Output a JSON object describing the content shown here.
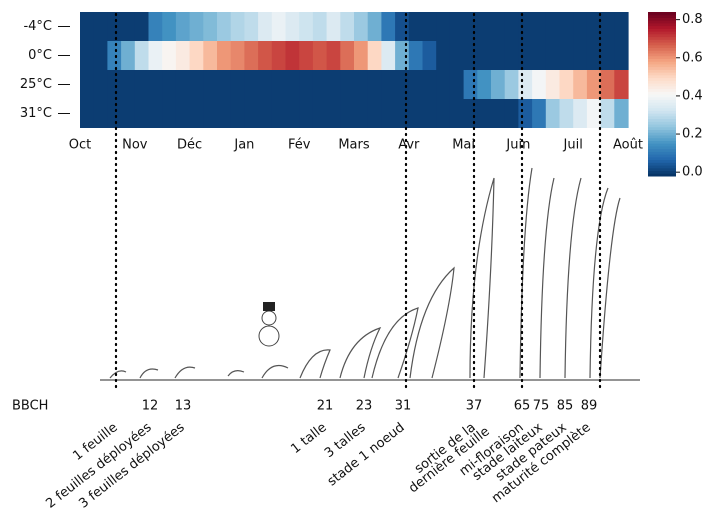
{
  "chart_data": {
    "type": "heatmap",
    "rows": [
      "-4°C",
      "0°C",
      "25°C",
      "31°C"
    ],
    "months": [
      "Oct",
      "Nov",
      "Déc",
      "Jan",
      "Fév",
      "Mars",
      "Avr",
      "Mai",
      "Juin",
      "Juil",
      "Août"
    ],
    "values": [
      [
        0,
        0,
        0,
        0,
        0,
        0.12,
        0.15,
        0.18,
        0.2,
        0.22,
        0.25,
        0.28,
        0.3,
        0.35,
        0.38,
        0.35,
        0.32,
        0.3,
        0.35,
        0.3,
        0.25,
        0.2,
        0.1,
        0.03,
        0,
        0,
        0,
        0,
        0,
        0,
        0,
        0,
        0,
        0,
        0,
        0,
        0,
        0,
        0,
        0
      ],
      [
        0,
        0,
        0.12,
        0.2,
        0.3,
        0.38,
        0.42,
        0.45,
        0.5,
        0.55,
        0.6,
        0.62,
        0.65,
        0.68,
        0.7,
        0.72,
        0.7,
        0.68,
        0.7,
        0.65,
        0.6,
        0.5,
        0.35,
        0.2,
        0.1,
        0.05,
        0,
        0,
        0,
        0,
        0,
        0,
        0,
        0,
        0,
        0,
        0,
        0,
        0,
        0
      ],
      [
        0,
        0,
        0,
        0,
        0,
        0,
        0,
        0,
        0,
        0,
        0,
        0,
        0,
        0,
        0,
        0,
        0,
        0,
        0,
        0,
        0,
        0,
        0,
        0,
        0,
        0,
        0,
        0,
        0.1,
        0.15,
        0.2,
        0.25,
        0.35,
        0.4,
        0.45,
        0.5,
        0.55,
        0.6,
        0.65,
        0.7
      ],
      [
        0,
        0,
        0,
        0,
        0,
        0,
        0,
        0,
        0,
        0,
        0,
        0,
        0,
        0,
        0,
        0,
        0,
        0,
        0,
        0,
        0,
        0,
        0,
        0,
        0,
        0,
        0,
        0,
        0,
        0,
        0,
        0,
        0.05,
        0.1,
        0.25,
        0.3,
        0.35,
        0.4,
        0.3,
        0.2
      ]
    ],
    "colorscale": [
      "#053061",
      "#2166ac",
      "#4393c3",
      "#92c5de",
      "#d1e5f0",
      "#f7f7f7",
      "#fddbc7",
      "#f4a582",
      "#d6604d",
      "#b2182b",
      "#67001f"
    ],
    "zlim": [
      -0.02,
      0.84
    ],
    "zticks": [
      {
        "value": 0,
        "label": "0.0"
      },
      0.2,
      0.4,
      0.6,
      0.8
    ],
    "stage_axis_label": "BBCH",
    "stages": [
      {
        "code": null,
        "label": "1 feuille"
      },
      {
        "code": 12,
        "label": "2 feuilles déployées"
      },
      {
        "code": 13,
        "label": "3 feuilles déployées"
      },
      {
        "code": 21,
        "label": "1 talle"
      },
      {
        "code": 23,
        "label": "3 talles"
      },
      {
        "code": 31,
        "label": "stade 1 noeud"
      },
      {
        "code": 37,
        "label": [
          "sortie de la",
          "dernière feuille"
        ]
      },
      {
        "code": 65,
        "label": "mi-floraison"
      },
      {
        "code": 75,
        "label": "stade laiteux"
      },
      {
        "code": 85,
        "label": "stade pateux"
      },
      {
        "code": 89,
        "label": "maturité complète"
      }
    ]
  }
}
